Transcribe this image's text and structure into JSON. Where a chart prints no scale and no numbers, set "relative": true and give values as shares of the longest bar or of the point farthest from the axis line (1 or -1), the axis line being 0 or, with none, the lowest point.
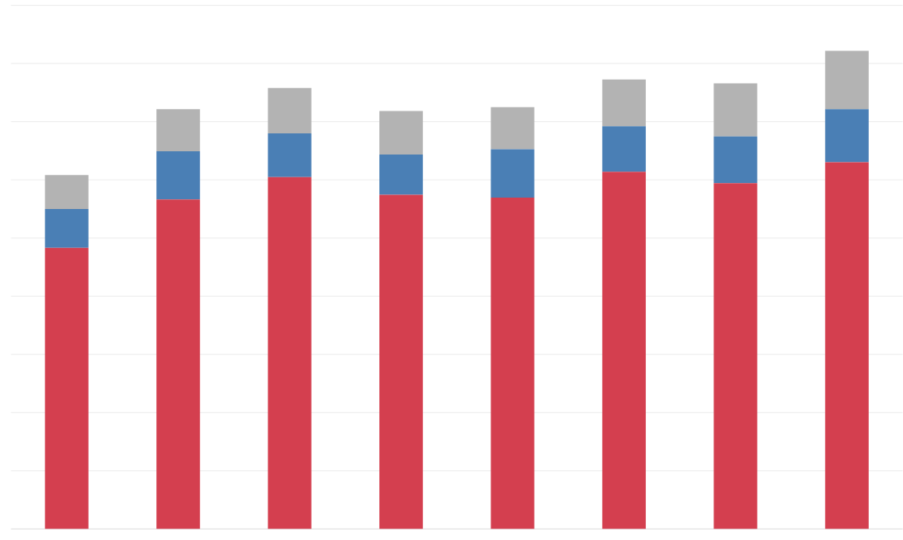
{
  "chart_data": {
    "type": "bar",
    "stacked": true,
    "relative": true,
    "grid": "y",
    "categories": [
      null,
      null,
      null,
      null,
      null,
      null,
      null,
      null
    ],
    "series": [
      {
        "color": "#d43f4f",
        "values": [
          0.588,
          0.689,
          0.736,
          0.699,
          0.693,
          0.747,
          0.723,
          0.767
        ]
      },
      {
        "color": "#4a7fb5",
        "values": [
          0.081,
          0.101,
          0.091,
          0.084,
          0.101,
          0.095,
          0.098,
          0.111
        ]
      },
      {
        "color": "#b3b3b3",
        "values": [
          0.071,
          0.088,
          0.095,
          0.091,
          0.088,
          0.098,
          0.111,
          0.122
        ]
      }
    ]
  }
}
